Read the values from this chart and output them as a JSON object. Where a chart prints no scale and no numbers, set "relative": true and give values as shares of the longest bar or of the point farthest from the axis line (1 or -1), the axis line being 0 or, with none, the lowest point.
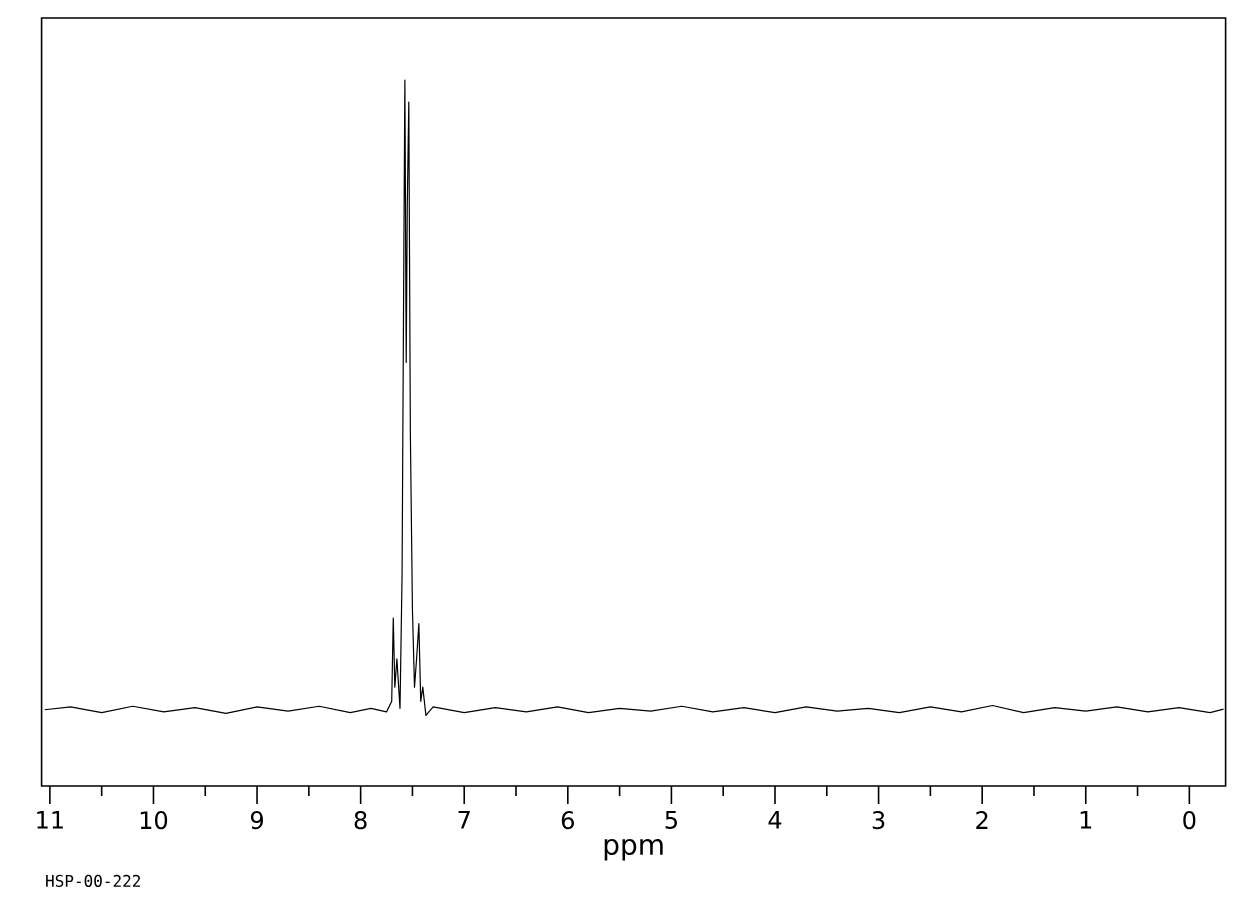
{
  "chart_data": {
    "type": "line",
    "relative": true,
    "xlabel": "ppm",
    "annotations": [
      "HSP-00-222"
    ],
    "xlim": [
      11.08,
      -0.35
    ],
    "xticks": [
      11,
      {
        "value": 10.5,
        "label": null
      },
      10,
      {
        "value": 9.5,
        "label": null
      },
      9,
      {
        "value": 8.5,
        "label": null
      },
      8,
      {
        "value": 7.5,
        "label": null
      },
      7,
      {
        "value": 6.5,
        "label": null
      },
      6,
      {
        "value": 5.5,
        "label": null
      },
      5,
      {
        "value": 4.5,
        "label": null
      },
      4,
      {
        "value": 3.5,
        "label": null
      },
      3,
      {
        "value": 2.5,
        "label": null
      },
      2,
      {
        "value": 1.5,
        "label": null
      },
      1,
      {
        "value": 0.5,
        "label": null
      },
      0
    ],
    "x": [
      11.05,
      10.8,
      10.5,
      10.2,
      9.9,
      9.6,
      9.3,
      9.0,
      8.7,
      8.4,
      8.1,
      7.9,
      7.75,
      7.7,
      7.685,
      7.67,
      7.65,
      7.62,
      7.6,
      7.585,
      7.573,
      7.56,
      7.55,
      7.535,
      7.52,
      7.5,
      7.48,
      7.46,
      7.438,
      7.42,
      7.4,
      7.37,
      7.3,
      7.0,
      6.7,
      6.4,
      6.1,
      5.8,
      5.5,
      5.2,
      4.9,
      4.6,
      4.3,
      4.0,
      3.7,
      3.4,
      3.1,
      2.8,
      2.5,
      2.2,
      1.9,
      1.6,
      1.3,
      1.0,
      0.7,
      0.4,
      0.1,
      -0.2,
      -0.33
    ],
    "series": [
      {
        "color": "#000000",
        "values": [
          0.108,
          0.112,
          0.104,
          0.113,
          0.105,
          0.111,
          0.103,
          0.112,
          0.106,
          0.113,
          0.104,
          0.11,
          0.105,
          0.12,
          0.238,
          0.14,
          0.18,
          0.11,
          0.3,
          0.7,
          1.0,
          0.6,
          0.82,
          0.969,
          0.5,
          0.25,
          0.14,
          0.18,
          0.23,
          0.12,
          0.14,
          0.1,
          0.112,
          0.104,
          0.111,
          0.105,
          0.112,
          0.104,
          0.11,
          0.106,
          0.113,
          0.105,
          0.111,
          0.104,
          0.112,
          0.106,
          0.11,
          0.104,
          0.112,
          0.105,
          0.114,
          0.104,
          0.111,
          0.106,
          0.112,
          0.105,
          0.111,
          0.104,
          0.109
        ]
      }
    ]
  }
}
